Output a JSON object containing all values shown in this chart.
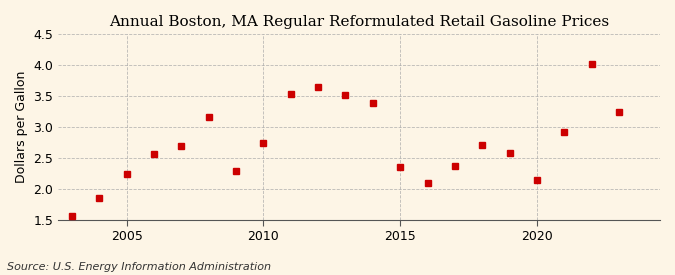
{
  "title": "Annual Boston, MA Regular Reformulated Retail Gasoline Prices",
  "ylabel": "Dollars per Gallon",
  "source": "Source: U.S. Energy Information Administration",
  "background_color": "#fdf5e6",
  "marker_color": "#cc0000",
  "years": [
    2003,
    2004,
    2005,
    2006,
    2007,
    2008,
    2009,
    2010,
    2011,
    2012,
    2013,
    2014,
    2015,
    2016,
    2017,
    2018,
    2019,
    2020,
    2021,
    2022,
    2023
  ],
  "values": [
    1.57,
    1.85,
    2.25,
    2.57,
    2.7,
    3.17,
    2.3,
    2.74,
    3.54,
    3.65,
    3.52,
    3.39,
    2.36,
    2.1,
    2.38,
    2.71,
    2.59,
    2.14,
    2.92,
    4.02,
    3.25
  ],
  "ylim": [
    1.5,
    4.5
  ],
  "yticks": [
    1.5,
    2.0,
    2.5,
    3.0,
    3.5,
    4.0,
    4.5
  ],
  "xticks": [
    2005,
    2010,
    2015,
    2020
  ],
  "xlim": [
    2002.5,
    2024.5
  ],
  "grid_color": "#aaaaaa",
  "title_fontsize": 11,
  "label_fontsize": 9,
  "source_fontsize": 8
}
